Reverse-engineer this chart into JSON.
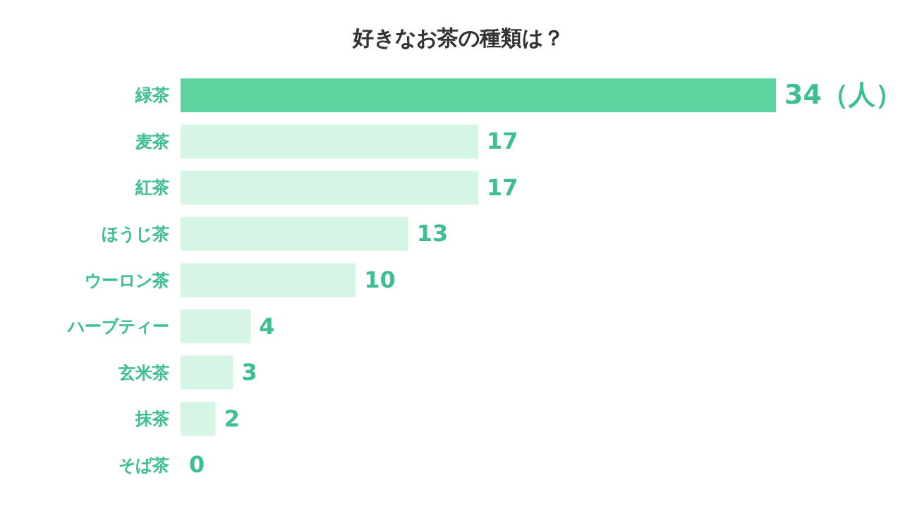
{
  "chart_data": {
    "type": "bar",
    "orientation": "horizontal",
    "title": "好きなお茶の種類は？",
    "categories": [
      "緑茶",
      "麦茶",
      "紅茶",
      "ほうじ茶",
      "ウーロン茶",
      "ハーブティー",
      "玄米茶",
      "抹茶",
      "そば茶"
    ],
    "values": [
      34,
      17,
      17,
      13,
      10,
      4,
      3,
      2,
      0
    ],
    "colors": [
      "#5fd39f",
      "#d5f5e5",
      "#d5f5e5",
      "#d5f5e5",
      "#d5f5e5",
      "#d5f5e5",
      "#d5f5e5",
      "#d5f5e5",
      "#d5f5e5"
    ],
    "value_labels": [
      "34（人）",
      "17",
      "17",
      "13",
      "10",
      "4",
      "3",
      "2",
      "0"
    ],
    "grid": false,
    "legend": false
  }
}
